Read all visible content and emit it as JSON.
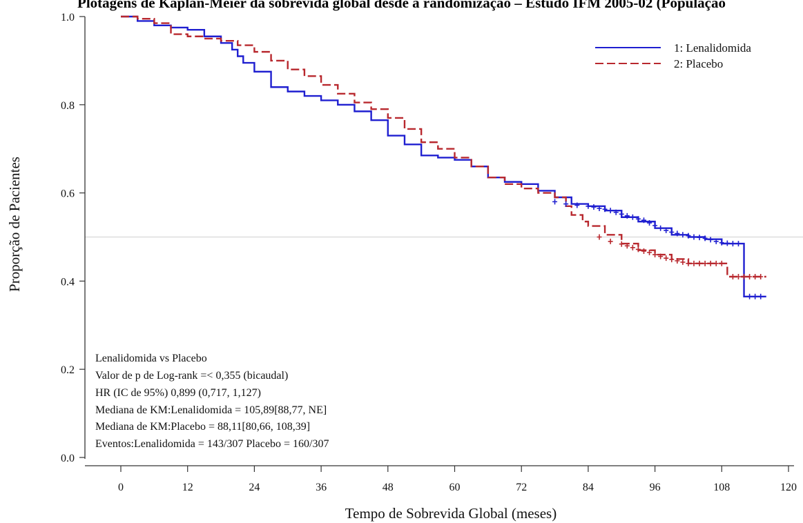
{
  "chart_data": {
    "type": "line",
    "title": "Plotagens de Kaplan-Meier da sobrevida global desde a randomização – Estudo IFM 2005-02 (População",
    "xlabel": "Tempo de Sobrevida Global (meses)",
    "ylabel": "Proporção de Pacientes",
    "xlim": [
      0,
      120
    ],
    "ylim": [
      0,
      1
    ],
    "x_ticks": [
      "0",
      "12",
      "24",
      "36",
      "48",
      "60",
      "72",
      "84",
      "96",
      "108",
      "120"
    ],
    "y_ticks": [
      "0.0",
      "0.2",
      "0.4",
      "0.6",
      "0.8",
      "1.0"
    ],
    "reference_line_y": 0.5,
    "grid": false,
    "legend_position": "top-right",
    "series": [
      {
        "name": "1: Lenalidomida",
        "color": "#1f1fd0",
        "style": "solid",
        "x": [
          0,
          3,
          6,
          9,
          12,
          15,
          18,
          20,
          21,
          22,
          24,
          27,
          30,
          33,
          36,
          39,
          42,
          45,
          48,
          51,
          54,
          57,
          60,
          63,
          66,
          69,
          72,
          75,
          78,
          81,
          84,
          87,
          90,
          93,
          96,
          99,
          102,
          105,
          108,
          111,
          112,
          112,
          114,
          116
        ],
        "y": [
          1.0,
          0.99,
          0.98,
          0.975,
          0.97,
          0.955,
          0.94,
          0.925,
          0.91,
          0.895,
          0.875,
          0.84,
          0.83,
          0.82,
          0.81,
          0.8,
          0.785,
          0.765,
          0.73,
          0.71,
          0.685,
          0.68,
          0.675,
          0.66,
          0.635,
          0.625,
          0.62,
          0.605,
          0.59,
          0.575,
          0.57,
          0.56,
          0.545,
          0.535,
          0.52,
          0.505,
          0.5,
          0.495,
          0.485,
          0.485,
          0.485,
          0.365,
          0.365,
          0.365
        ],
        "censor_x": [
          78,
          80,
          82,
          84,
          85,
          86,
          87,
          88,
          89,
          90,
          91,
          92,
          93,
          94,
          95,
          96,
          97,
          98,
          99,
          100,
          101,
          102,
          103,
          104,
          105,
          106,
          107,
          108,
          109,
          110,
          111,
          113,
          114,
          115
        ],
        "censor_y": [
          0.58,
          0.575,
          0.572,
          0.57,
          0.568,
          0.565,
          0.563,
          0.56,
          0.556,
          0.552,
          0.548,
          0.545,
          0.541,
          0.538,
          0.532,
          0.526,
          0.52,
          0.515,
          0.511,
          0.508,
          0.505,
          0.503,
          0.5,
          0.499,
          0.497,
          0.494,
          0.49,
          0.487,
          0.486,
          0.485,
          0.485,
          0.365,
          0.365,
          0.365
        ]
      },
      {
        "name": "2: Placebo",
        "color": "#b8282e",
        "style": "dashed",
        "x": [
          0,
          3,
          6,
          9,
          12,
          15,
          18,
          21,
          24,
          27,
          30,
          33,
          36,
          39,
          42,
          45,
          48,
          51,
          54,
          57,
          60,
          63,
          66,
          69,
          72,
          75,
          78,
          80,
          81,
          83,
          84,
          87,
          90,
          93,
          96,
          99,
          102,
          105,
          108,
          109,
          109,
          112,
          114,
          116
        ],
        "y": [
          1.0,
          0.995,
          0.985,
          0.96,
          0.955,
          0.95,
          0.945,
          0.935,
          0.92,
          0.9,
          0.88,
          0.865,
          0.845,
          0.825,
          0.805,
          0.79,
          0.77,
          0.745,
          0.715,
          0.7,
          0.68,
          0.66,
          0.635,
          0.62,
          0.61,
          0.6,
          0.59,
          0.57,
          0.55,
          0.535,
          0.525,
          0.505,
          0.485,
          0.47,
          0.46,
          0.45,
          0.44,
          0.44,
          0.44,
          0.44,
          0.41,
          0.41,
          0.41,
          0.41
        ],
        "censor_x": [
          86,
          88,
          90,
          91,
          92,
          93,
          94,
          95,
          96,
          97,
          98,
          99,
          100,
          101,
          102,
          103,
          104,
          105,
          106,
          107,
          108,
          110,
          111,
          112,
          113,
          114,
          115
        ],
        "censor_y": [
          0.5,
          0.49,
          0.484,
          0.48,
          0.476,
          0.472,
          0.468,
          0.465,
          0.46,
          0.456,
          0.452,
          0.449,
          0.446,
          0.443,
          0.44,
          0.44,
          0.44,
          0.44,
          0.44,
          0.44,
          0.44,
          0.41,
          0.41,
          0.41,
          0.41,
          0.41,
          0.41
        ]
      }
    ],
    "annotations": [
      "Lenalidomida vs Placebo",
      "Valor de p de Log-rank =< 0,355 (bicaudal)",
      "HR (IC de 95%) 0,899 (0,717, 1,127)",
      "Mediana de KM:Lenalidomida = 105,89[88,77, NE]",
      "Mediana de KM:Placebo = 88,11[80,66, 108,39]",
      "Eventos:Lenalidomida = 143/307 Placebo = 160/307"
    ]
  }
}
